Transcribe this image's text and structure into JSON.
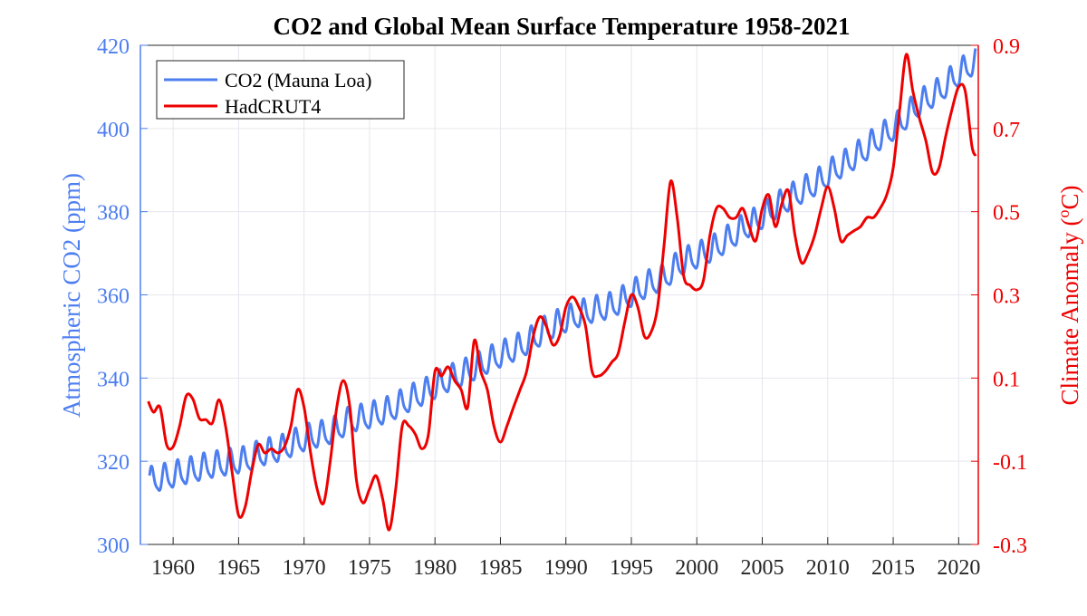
{
  "chart_data": {
    "type": "line",
    "title": "CO2 and Global Mean Surface Temperature 1958-2021",
    "xlabel": "",
    "ylabel_left": "Atmospheric CO2 (ppm)",
    "ylabel_right_prefix": "Climate Anomaly (",
    "ylabel_right_sup": "o",
    "ylabel_right_suffix": "C)",
    "xlim": [
      1957.5,
      2021.5
    ],
    "ylim_left": [
      300,
      420
    ],
    "ylim_right": [
      -0.3,
      0.9
    ],
    "grid": true,
    "legend_placement": "top-left",
    "x_ticks": [
      "1960",
      "1965",
      "1970",
      "1975",
      "1980",
      "1985",
      "1990",
      "1995",
      "2000",
      "2005",
      "2010",
      "2015",
      "2020"
    ],
    "x_tick_values": [
      1960,
      1965,
      1970,
      1975,
      1980,
      1985,
      1990,
      1995,
      2000,
      2005,
      2010,
      2015,
      2020
    ],
    "y_left_ticks": [
      "300",
      "320",
      "340",
      "360",
      "380",
      "400",
      "420"
    ],
    "y_left_tick_values": [
      300,
      320,
      340,
      360,
      380,
      400,
      420
    ],
    "y_right_ticks": [
      "-0.3",
      "-0.1",
      "0.1",
      "0.3",
      "0.5",
      "0.7",
      "0.9"
    ],
    "y_right_tick_values": [
      -0.3,
      -0.1,
      0.1,
      0.3,
      0.5,
      0.7,
      0.9
    ],
    "colors": {
      "co2": "#4d7ef0",
      "hadcrut": "#ee0000",
      "grid": "#e6e6ee"
    },
    "series": [
      {
        "name": "CO2 (Mauna Loa)",
        "axis": "left",
        "start_year": 1958.2,
        "end_year": 2021.3,
        "seasonal_amplitude_ppm": 3.0,
        "annual_mean_years": [
          1958,
          1959,
          1960,
          1961,
          1962,
          1963,
          1964,
          1965,
          1966,
          1967,
          1968,
          1969,
          1970,
          1971,
          1972,
          1973,
          1974,
          1975,
          1976,
          1977,
          1978,
          1979,
          1980,
          1981,
          1982,
          1983,
          1984,
          1985,
          1986,
          1987,
          1988,
          1989,
          1990,
          1991,
          1992,
          1993,
          1994,
          1995,
          1996,
          1997,
          1998,
          1999,
          2000,
          2001,
          2002,
          2003,
          2004,
          2005,
          2006,
          2007,
          2008,
          2009,
          2010,
          2011,
          2012,
          2013,
          2014,
          2015,
          2016,
          2017,
          2018,
          2019,
          2020,
          2021
        ],
        "annual_mean_ppm": [
          315.3,
          316.0,
          316.9,
          317.6,
          318.5,
          319.0,
          319.6,
          320.0,
          321.4,
          322.2,
          323.0,
          324.6,
          325.7,
          326.3,
          327.5,
          329.7,
          330.2,
          331.1,
          332.1,
          333.8,
          335.4,
          336.8,
          338.7,
          340.1,
          341.4,
          343.0,
          344.6,
          346.0,
          347.4,
          349.2,
          351.6,
          353.1,
          354.4,
          355.6,
          356.4,
          357.1,
          358.9,
          360.9,
          362.7,
          363.8,
          366.8,
          368.5,
          369.7,
          371.3,
          373.5,
          375.8,
          377.5,
          379.8,
          381.9,
          383.8,
          385.6,
          387.4,
          389.9,
          391.7,
          393.9,
          396.5,
          398.7,
          401.0,
          404.4,
          406.8,
          408.7,
          411.7,
          414.2,
          416.5
        ]
      },
      {
        "name": "HadCRUT4",
        "axis": "right",
        "x": [
          1958.1,
          1958.5,
          1959.0,
          1959.5,
          1960.0,
          1960.5,
          1961.0,
          1961.5,
          1962.0,
          1962.5,
          1963.0,
          1963.5,
          1964.0,
          1964.5,
          1965.0,
          1965.5,
          1966.0,
          1966.5,
          1967.0,
          1967.5,
          1968.0,
          1968.5,
          1969.0,
          1969.5,
          1970.0,
          1970.5,
          1971.0,
          1971.5,
          1972.0,
          1972.5,
          1973.0,
          1973.5,
          1974.0,
          1974.5,
          1975.0,
          1975.5,
          1976.0,
          1976.5,
          1977.0,
          1977.5,
          1978.0,
          1978.5,
          1979.0,
          1979.5,
          1980.0,
          1980.5,
          1981.0,
          1981.5,
          1982.0,
          1982.5,
          1983.0,
          1983.5,
          1984.0,
          1984.5,
          1985.0,
          1985.5,
          1986.0,
          1986.5,
          1987.0,
          1987.5,
          1988.0,
          1988.5,
          1989.0,
          1989.5,
          1990.0,
          1990.5,
          1991.0,
          1991.5,
          1992.0,
          1992.5,
          1993.0,
          1993.5,
          1994.0,
          1994.5,
          1995.0,
          1995.5,
          1996.0,
          1996.5,
          1997.0,
          1997.5,
          1998.0,
          1998.5,
          1999.0,
          1999.5,
          2000.0,
          2000.5,
          2001.0,
          2001.5,
          2002.0,
          2002.5,
          2003.0,
          2003.5,
          2004.0,
          2004.5,
          2005.0,
          2005.5,
          2006.0,
          2006.5,
          2007.0,
          2007.5,
          2008.0,
          2008.5,
          2009.0,
          2009.5,
          2010.0,
          2010.5,
          2011.0,
          2011.5,
          2012.0,
          2012.5,
          2013.0,
          2013.5,
          2014.0,
          2014.5,
          2015.0,
          2015.5,
          2016.0,
          2016.5,
          2017.0,
          2017.5,
          2018.0,
          2018.5,
          2019.0,
          2019.5,
          2020.0,
          2020.5,
          2021.0,
          2021.3
        ],
        "y": [
          0.044,
          0.018,
          0.03,
          -0.06,
          -0.065,
          -0.015,
          0.057,
          0.05,
          0.003,
          0.0,
          -0.008,
          0.048,
          -0.015,
          -0.125,
          -0.23,
          -0.21,
          -0.125,
          -0.06,
          -0.08,
          -0.07,
          -0.08,
          -0.065,
          -0.015,
          0.072,
          0.03,
          -0.08,
          -0.167,
          -0.2,
          -0.1,
          0.03,
          0.094,
          0.03,
          -0.145,
          -0.2,
          -0.167,
          -0.135,
          -0.19,
          -0.265,
          -0.167,
          -0.015,
          -0.015,
          -0.035,
          -0.07,
          -0.035,
          0.116,
          0.105,
          0.127,
          0.094,
          0.072,
          0.03,
          0.19,
          0.116,
          0.072,
          -0.015,
          -0.054,
          -0.015,
          0.03,
          0.072,
          0.116,
          0.2,
          0.247,
          0.225,
          0.18,
          0.2,
          0.27,
          0.295,
          0.27,
          0.225,
          0.116,
          0.105,
          0.116,
          0.138,
          0.16,
          0.235,
          0.3,
          0.27,
          0.2,
          0.21,
          0.27,
          0.42,
          0.573,
          0.486,
          0.345,
          0.323,
          0.312,
          0.334,
          0.443,
          0.508,
          0.508,
          0.486,
          0.486,
          0.508,
          0.464,
          0.43,
          0.508,
          0.54,
          0.464,
          0.52,
          0.55,
          0.443,
          0.377,
          0.4,
          0.443,
          0.508,
          0.56,
          0.508,
          0.43,
          0.443,
          0.454,
          0.464,
          0.486,
          0.486,
          0.508,
          0.54,
          0.605,
          0.747,
          0.878,
          0.79,
          0.725,
          0.67,
          0.595,
          0.605,
          0.68,
          0.747,
          0.8,
          0.79,
          0.66,
          0.634
        ]
      }
    ]
  }
}
